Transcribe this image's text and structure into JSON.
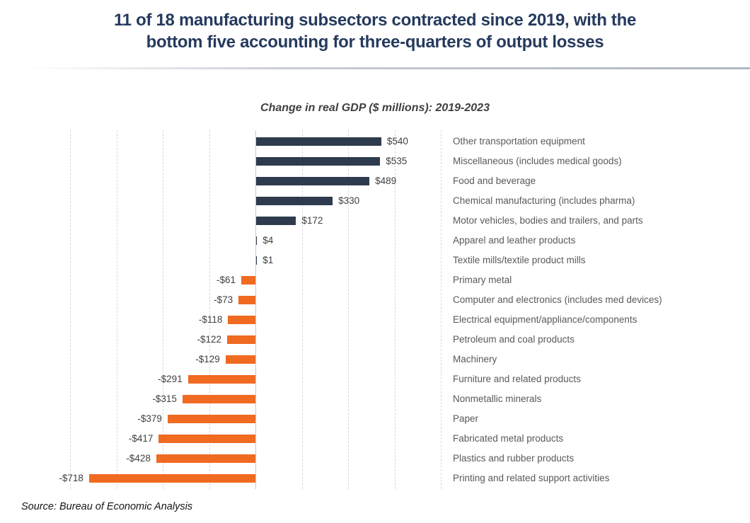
{
  "title": {
    "text": "11 of 18 manufacturing subsectors contracted since 2019, with the bottom five accounting for three-quarters of output losses",
    "line1": "11 of 18 manufacturing subsectors contracted since 2019, with the",
    "line2": "bottom five accounting for three-quarters of output losses"
  },
  "subtitle": "Change in real GDP ($ millions): 2019-2023",
  "source": "Source: Bureau of Economic Analysis",
  "colors": {
    "positive_bar": "#2E3B4E",
    "negative_bar": "#F06A21",
    "title": "#253A5D",
    "subtitle": "#404040",
    "value_label": "#3F3F3F",
    "category_label": "#595959",
    "gridline": "#D8D8D8",
    "axis": "#C9C9C9"
  },
  "chart_data": {
    "type": "bar",
    "orientation": "horizontal",
    "title": "Change in real GDP ($ millions): 2019-2023",
    "xlabel": "",
    "ylabel": "",
    "xlim": [
      -800,
      800
    ],
    "gridline_step": 200,
    "grid": true,
    "legend": false,
    "categories": [
      "Other transportation equipment",
      "Miscellaneous (includes medical goods)",
      "Food and beverage",
      "Chemical manufacturing (includes pharma)",
      "Motor vehicles, bodies and trailers, and parts",
      "Apparel and leather products",
      "Textile mills/textile product mills",
      "Primary metal",
      "Computer and electronics (includes med devices)",
      "Electrical equipment/appliance/components",
      "Petroleum and coal products",
      "Machinery",
      "Furniture and related products",
      "Nonmetallic minerals",
      "Paper",
      "Fabricated metal products",
      "Plastics and rubber products",
      "Printing and related support activities"
    ],
    "values": [
      540,
      535,
      489,
      330,
      172,
      4,
      1,
      -61,
      -73,
      -118,
      -122,
      -129,
      -291,
      -315,
      -379,
      -417,
      -428,
      -718
    ],
    "value_labels": [
      "$540",
      "$535",
      "$489",
      "$330",
      "$172",
      "$4",
      "$1",
      "-$61",
      "-$73",
      "-$118",
      "-$122",
      "-$129",
      "-$291",
      "-$315",
      "-$379",
      "-$417",
      "-$428",
      "-$718"
    ]
  }
}
